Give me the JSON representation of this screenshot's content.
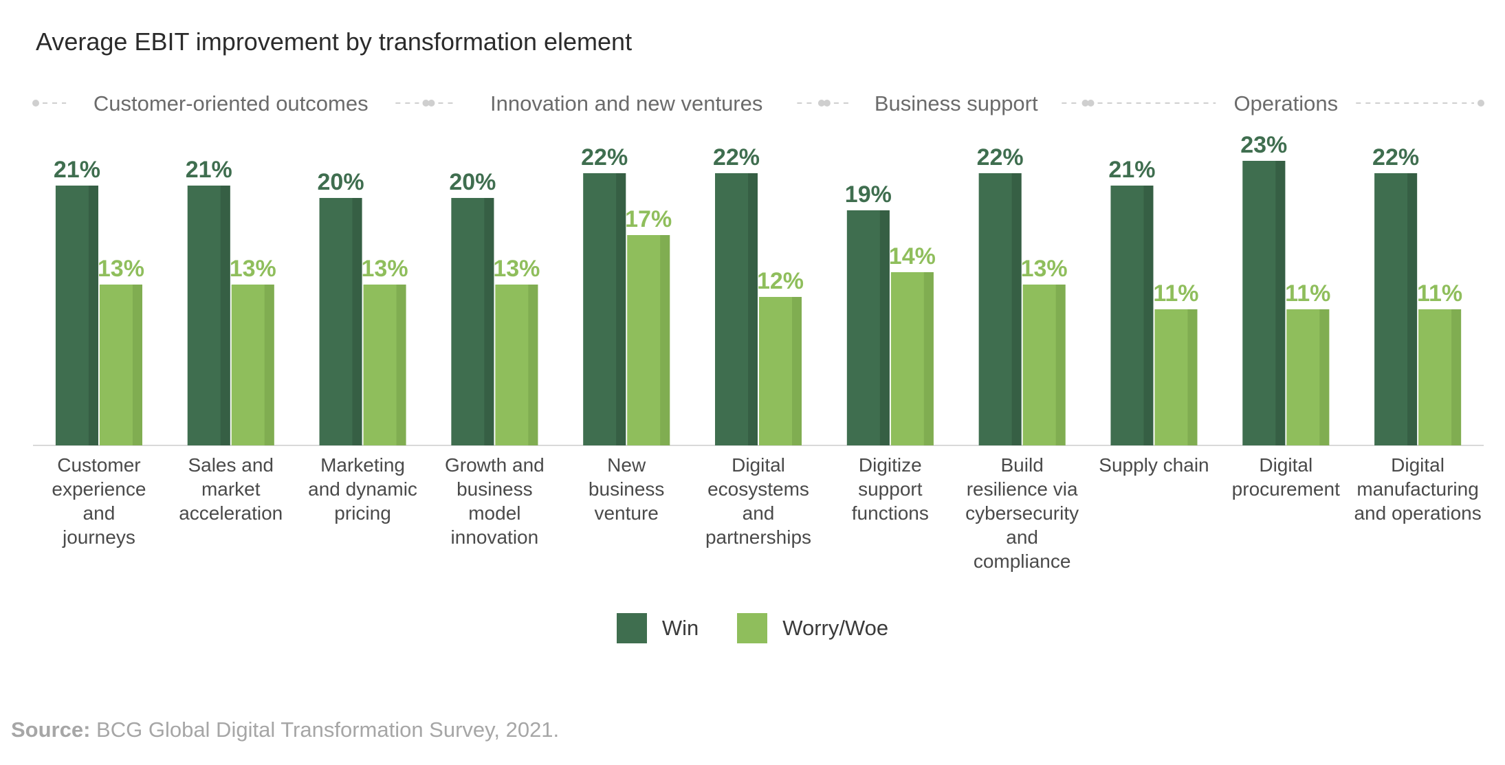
{
  "title": "Average EBIT improvement by transformation element",
  "colors": {
    "win": "#3f6e4f",
    "worry": "#8fbe5c",
    "axis": "#d9d9d9",
    "group_text": "#6b6b6b",
    "cat_text": "#4a4a4a",
    "dots": "#cfcfcf"
  },
  "legend": {
    "win": "Win",
    "worry": "Worry/Woe"
  },
  "source": {
    "label": "Source:",
    "text": "BCG Global Digital Transformation Survey, 2021."
  },
  "chart_data": {
    "type": "bar",
    "title": "Average EBIT improvement by transformation element",
    "xlabel": "",
    "ylabel": "",
    "ylim": [
      0,
      23
    ],
    "grid": false,
    "legend_position": "bottom",
    "groups": [
      {
        "label": "Customer-oriented outcomes",
        "start": 0,
        "end": 2
      },
      {
        "label": "Innovation and new ventures",
        "start": 3,
        "end": 5
      },
      {
        "label": "Business support",
        "start": 6,
        "end": 7
      },
      {
        "label": "Operations",
        "start": 8,
        "end": 10
      }
    ],
    "categories": [
      [
        "Customer",
        "experience",
        "and",
        "journeys"
      ],
      [
        "Sales and",
        "market",
        "acceleration"
      ],
      [
        "Marketing",
        "and dynamic",
        "pricing"
      ],
      [
        "Growth and",
        "business",
        "model",
        "innovation"
      ],
      [
        "New",
        "business",
        "venture"
      ],
      [
        "Digital",
        "ecosystems",
        "and",
        "partnerships"
      ],
      [
        "Digitize",
        "support",
        "functions"
      ],
      [
        "Build",
        "resilience via",
        "cybersecurity",
        "and",
        "compliance"
      ],
      [
        "Supply chain"
      ],
      [
        "Digital",
        "procurement"
      ],
      [
        "Digital",
        "manufacturing",
        "and operations"
      ]
    ],
    "series": [
      {
        "name": "Win",
        "values": [
          21,
          21,
          20,
          20,
          22,
          22,
          19,
          22,
          21,
          23,
          22
        ]
      },
      {
        "name": "Worry/Woe",
        "values": [
          13,
          13,
          13,
          13,
          17,
          12,
          14,
          13,
          11,
          11,
          11
        ]
      }
    ]
  }
}
